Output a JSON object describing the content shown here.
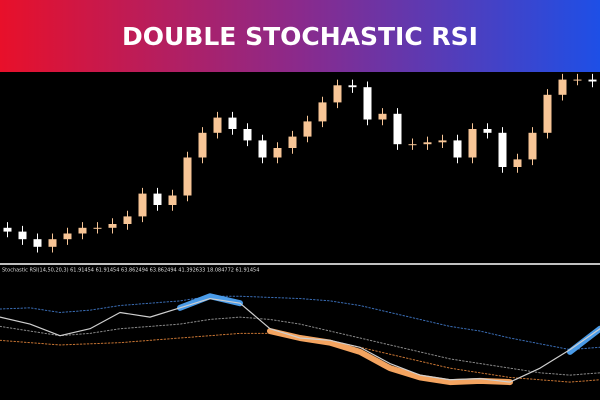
{
  "banner": {
    "title": "DOUBLE STOCHASTIC RSI"
  },
  "chart_data": [
    {
      "type": "candlestick",
      "ylim": [
        0,
        100
      ],
      "up_color": "#f7c596",
      "down_color": "#ffffff",
      "open": [
        18,
        16,
        12,
        8,
        12,
        15,
        18,
        18,
        20,
        24,
        36,
        30,
        35,
        55,
        68,
        76,
        70,
        64,
        55,
        60,
        66,
        74,
        84,
        93,
        92,
        75,
        78,
        62,
        62,
        63,
        64,
        55,
        70,
        68,
        50,
        54,
        68,
        88,
        96,
        96
      ],
      "close": [
        16,
        12,
        8,
        12,
        15,
        18,
        18,
        20,
        24,
        36,
        30,
        35,
        55,
        68,
        76,
        70,
        64,
        55,
        60,
        66,
        74,
        84,
        93,
        92,
        75,
        78,
        62,
        62,
        63,
        64,
        55,
        70,
        68,
        50,
        54,
        68,
        88,
        96,
        96,
        95
      ],
      "high": [
        21,
        19,
        15,
        15,
        18,
        21,
        21,
        23,
        27,
        39,
        39,
        38,
        58,
        71,
        79,
        79,
        73,
        67,
        63,
        69,
        77,
        87,
        96,
        96,
        95,
        81,
        81,
        65,
        66,
        67,
        67,
        73,
        73,
        71,
        57,
        71,
        91,
        99,
        99,
        99
      ],
      "low": [
        13,
        9,
        5,
        5,
        9,
        12,
        15,
        15,
        17,
        21,
        27,
        27,
        32,
        52,
        65,
        67,
        61,
        52,
        52,
        57,
        63,
        71,
        81,
        89,
        72,
        72,
        59,
        59,
        59,
        60,
        52,
        52,
        65,
        47,
        47,
        51,
        65,
        85,
        93,
        92
      ]
    },
    {
      "type": "line",
      "title": "Stochastic RSI(14,50,20,3) 61.91454 61.91454 63.862494 63.862494 41.392633 18.084772 61.91454",
      "x": [
        0,
        1,
        2,
        3,
        4,
        5,
        6,
        7,
        8,
        9,
        10,
        11,
        12,
        13,
        14,
        15,
        16,
        17,
        18,
        19,
        20
      ],
      "xlim": [
        0,
        20
      ],
      "ylim": [
        0,
        100
      ],
      "series": [
        {
          "color": "#3a6db5",
          "dotted": true,
          "width": 1,
          "values": [
            75,
            76,
            72,
            74,
            78,
            80,
            82,
            86,
            86,
            85,
            84,
            82,
            78,
            72,
            66,
            60,
            56,
            50,
            45,
            40,
            42
          ]
        },
        {
          "color": "#8a8a8a",
          "dotted": true,
          "width": 1,
          "values": [
            60,
            56,
            52,
            54,
            58,
            60,
            62,
            66,
            68,
            66,
            62,
            56,
            50,
            44,
            38,
            32,
            28,
            24,
            20,
            18,
            20
          ]
        },
        {
          "color": "#c87533",
          "dotted": true,
          "width": 1,
          "values": [
            48,
            46,
            44,
            45,
            46,
            48,
            50,
            52,
            54,
            54,
            52,
            48,
            42,
            36,
            30,
            24,
            20,
            16,
            14,
            12,
            14
          ]
        },
        {
          "color": "#f4a460",
          "dotted": false,
          "width": 6,
          "values": [
            null,
            null,
            null,
            null,
            null,
            null,
            null,
            null,
            null,
            56,
            50,
            46,
            38,
            24,
            16,
            12,
            13,
            12,
            null,
            null,
            null
          ]
        },
        {
          "color": "#4a9be8",
          "dotted": false,
          "width": 6,
          "values": [
            null,
            null,
            null,
            null,
            null,
            null,
            76,
            86,
            80,
            null,
            null,
            null,
            null,
            null,
            null,
            null,
            null,
            null,
            null,
            38,
            58
          ]
        },
        {
          "color": "#cfcfcf",
          "dotted": false,
          "width": 1.2,
          "values": [
            68,
            62,
            52,
            58,
            72,
            68,
            76,
            84,
            80,
            58,
            50,
            48,
            42,
            28,
            18,
            14,
            15,
            12,
            24,
            40,
            58
          ]
        }
      ]
    }
  ]
}
